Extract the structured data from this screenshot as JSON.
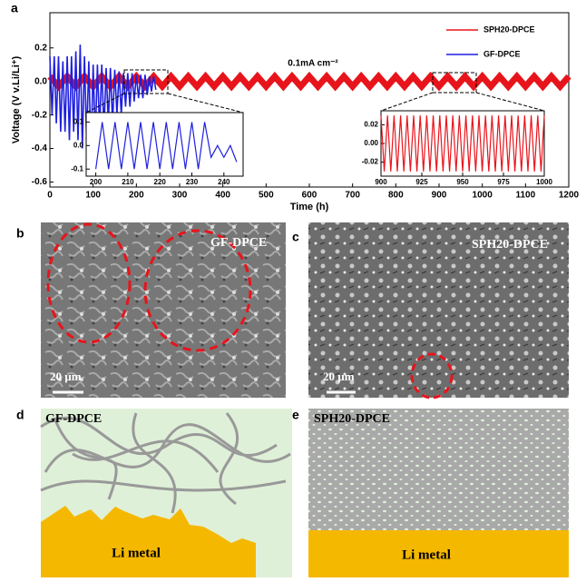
{
  "chart_data": {
    "type": "line",
    "panel": "a",
    "ylabel": "Voltage (V v.Li/Li⁺)",
    "xlabel": "Time (h)",
    "annotation": "0.1mA cm⁻²",
    "xlim": [
      0,
      1200
    ],
    "ylim": [
      -0.63,
      0.41
    ],
    "xticks": [
      0,
      100,
      200,
      300,
      400,
      500,
      600,
      700,
      800,
      900,
      1000,
      1100,
      1200
    ],
    "yticks": [
      -0.6,
      -0.4,
      -0.2,
      {
        "value": 0,
        "label": "0.0"
      },
      0.2
    ],
    "legend": "upper right",
    "series": [
      {
        "name": "SPH20-DPCE",
        "color": "#e8141b",
        "x": [
          0,
          20,
          40,
          60,
          80,
          100,
          120,
          140,
          160,
          180,
          200,
          220,
          240,
          260,
          280,
          300,
          320,
          340,
          360,
          380,
          400,
          420,
          440,
          460,
          480,
          500,
          520,
          540,
          560,
          580,
          600,
          620,
          640,
          660,
          680,
          700,
          720,
          740,
          760,
          780,
          800,
          820,
          840,
          860,
          880,
          900,
          920,
          940,
          960,
          980,
          1000,
          1020,
          1040,
          1060,
          1080,
          1100,
          1120,
          1140,
          1160,
          1180,
          1200
        ],
        "values": [
          0.03,
          -0.03,
          0.03,
          -0.03,
          0.03,
          -0.03,
          0.03,
          -0.03,
          0.03,
          -0.03,
          0.03,
          -0.03,
          0.03,
          -0.03,
          0.03,
          -0.03,
          0.03,
          -0.03,
          0.03,
          -0.03,
          0.03,
          -0.03,
          0.03,
          -0.03,
          0.03,
          -0.03,
          0.03,
          -0.03,
          0.03,
          -0.03,
          0.03,
          -0.03,
          0.03,
          -0.03,
          0.03,
          -0.03,
          0.03,
          -0.03,
          0.03,
          -0.03,
          0.03,
          -0.03,
          0.03,
          -0.03,
          0.03,
          -0.03,
          0.03,
          -0.03,
          0.03,
          -0.03,
          0.03,
          -0.03,
          0.03,
          -0.03,
          0.03,
          -0.03,
          0.03,
          -0.03,
          0.03,
          -0.03,
          0.03
        ]
      },
      {
        "name": "GF-DPCE",
        "color": "#1f1fe0",
        "x": [
          0,
          5,
          10,
          15,
          20,
          25,
          30,
          35,
          40,
          45,
          50,
          55,
          60,
          65,
          70,
          75,
          80,
          85,
          90,
          95,
          100,
          105,
          110,
          115,
          120,
          125,
          130,
          135,
          140,
          145,
          150,
          155,
          160,
          165,
          170,
          175,
          180,
          185,
          190,
          195,
          200,
          205,
          210,
          215,
          220,
          225,
          230,
          235,
          240,
          245
        ],
        "values": [
          0.15,
          -0.2,
          0.15,
          -0.25,
          0.15,
          -0.3,
          0.12,
          -0.3,
          0.15,
          -0.35,
          0.15,
          -0.3,
          0.18,
          -0.35,
          0.22,
          -0.4,
          0.15,
          -0.35,
          0.12,
          -0.45,
          0.1,
          -0.35,
          0.1,
          -0.3,
          0.1,
          -0.3,
          0.08,
          -0.25,
          0.08,
          -0.25,
          0.07,
          -0.2,
          0.06,
          -0.2,
          0.05,
          -0.15,
          0.05,
          -0.15,
          0.05,
          -0.12,
          0.04,
          -0.1,
          0.04,
          -0.1,
          0.04,
          -0.08,
          0.03,
          -0.06,
          0.03,
          -0.05
        ]
      }
    ],
    "insets": [
      {
        "xlim": [
          197,
          246
        ],
        "ylim": [
          -0.13,
          0.14
        ],
        "xticks": [
          200,
          210,
          220,
          230,
          240
        ],
        "yticks": [
          -0.1,
          {
            "value": 0,
            "label": "0.0"
          },
          0.1
        ],
        "color": "#1f1fe0",
        "x": [
          200,
          202,
          204,
          206,
          208,
          210,
          212,
          214,
          216,
          218,
          220,
          222,
          224,
          226,
          228,
          230,
          232,
          234,
          236,
          238,
          240,
          242,
          244
        ],
        "values": [
          -0.1,
          0.1,
          -0.1,
          0.1,
          -0.1,
          0.1,
          -0.1,
          0.1,
          -0.1,
          0.1,
          -0.1,
          0.1,
          -0.1,
          0.1,
          -0.1,
          0.1,
          -0.1,
          0.1,
          -0.05,
          0.0,
          -0.05,
          0.0,
          -0.07
        ]
      },
      {
        "xlim": [
          900,
          1000
        ],
        "ylim": [
          -0.035,
          0.035
        ],
        "xticks": [
          900,
          925,
          950,
          975,
          1000
        ],
        "yticks": [
          -0.02,
          {
            "value": 0,
            "label": "0.00"
          },
          0.02
        ],
        "color": "#e8141b",
        "x": [
          900,
          902,
          904,
          906,
          908,
          910,
          912,
          914,
          916,
          918,
          920,
          922,
          924,
          926,
          928,
          930,
          932,
          934,
          936,
          938,
          940,
          942,
          944,
          946,
          948,
          950,
          952,
          954,
          956,
          958,
          960,
          962,
          964,
          966,
          968,
          970,
          972,
          974,
          976,
          978,
          980,
          982,
          984,
          986,
          988,
          990,
          992,
          994,
          996,
          998,
          1000
        ],
        "values": [
          0.03,
          -0.03,
          0.03,
          -0.03,
          0.03,
          -0.03,
          0.03,
          -0.03,
          0.03,
          -0.03,
          0.03,
          -0.03,
          0.03,
          -0.03,
          0.03,
          -0.03,
          0.03,
          -0.03,
          0.03,
          -0.03,
          0.03,
          -0.03,
          0.03,
          -0.03,
          0.03,
          -0.03,
          0.03,
          -0.03,
          0.03,
          -0.03,
          0.03,
          -0.03,
          0.03,
          -0.03,
          0.03,
          -0.03,
          0.03,
          -0.03,
          0.03,
          -0.03,
          0.03,
          -0.03,
          0.03,
          -0.03,
          0.03,
          -0.03,
          0.03,
          -0.03,
          0.03,
          -0.03,
          0.03
        ]
      }
    ]
  },
  "panels": [
    {
      "letter": "b",
      "label": "GF-DPCE",
      "scale": "20 µm"
    },
    {
      "letter": "c",
      "label": "SPH20-DPCE",
      "scale": "20 µm"
    },
    {
      "letter": "d",
      "label": "GF-DPCE",
      "base": "Li metal"
    },
    {
      "letter": "e",
      "label": "SPH20-DPCE",
      "base": "Li metal"
    }
  ]
}
